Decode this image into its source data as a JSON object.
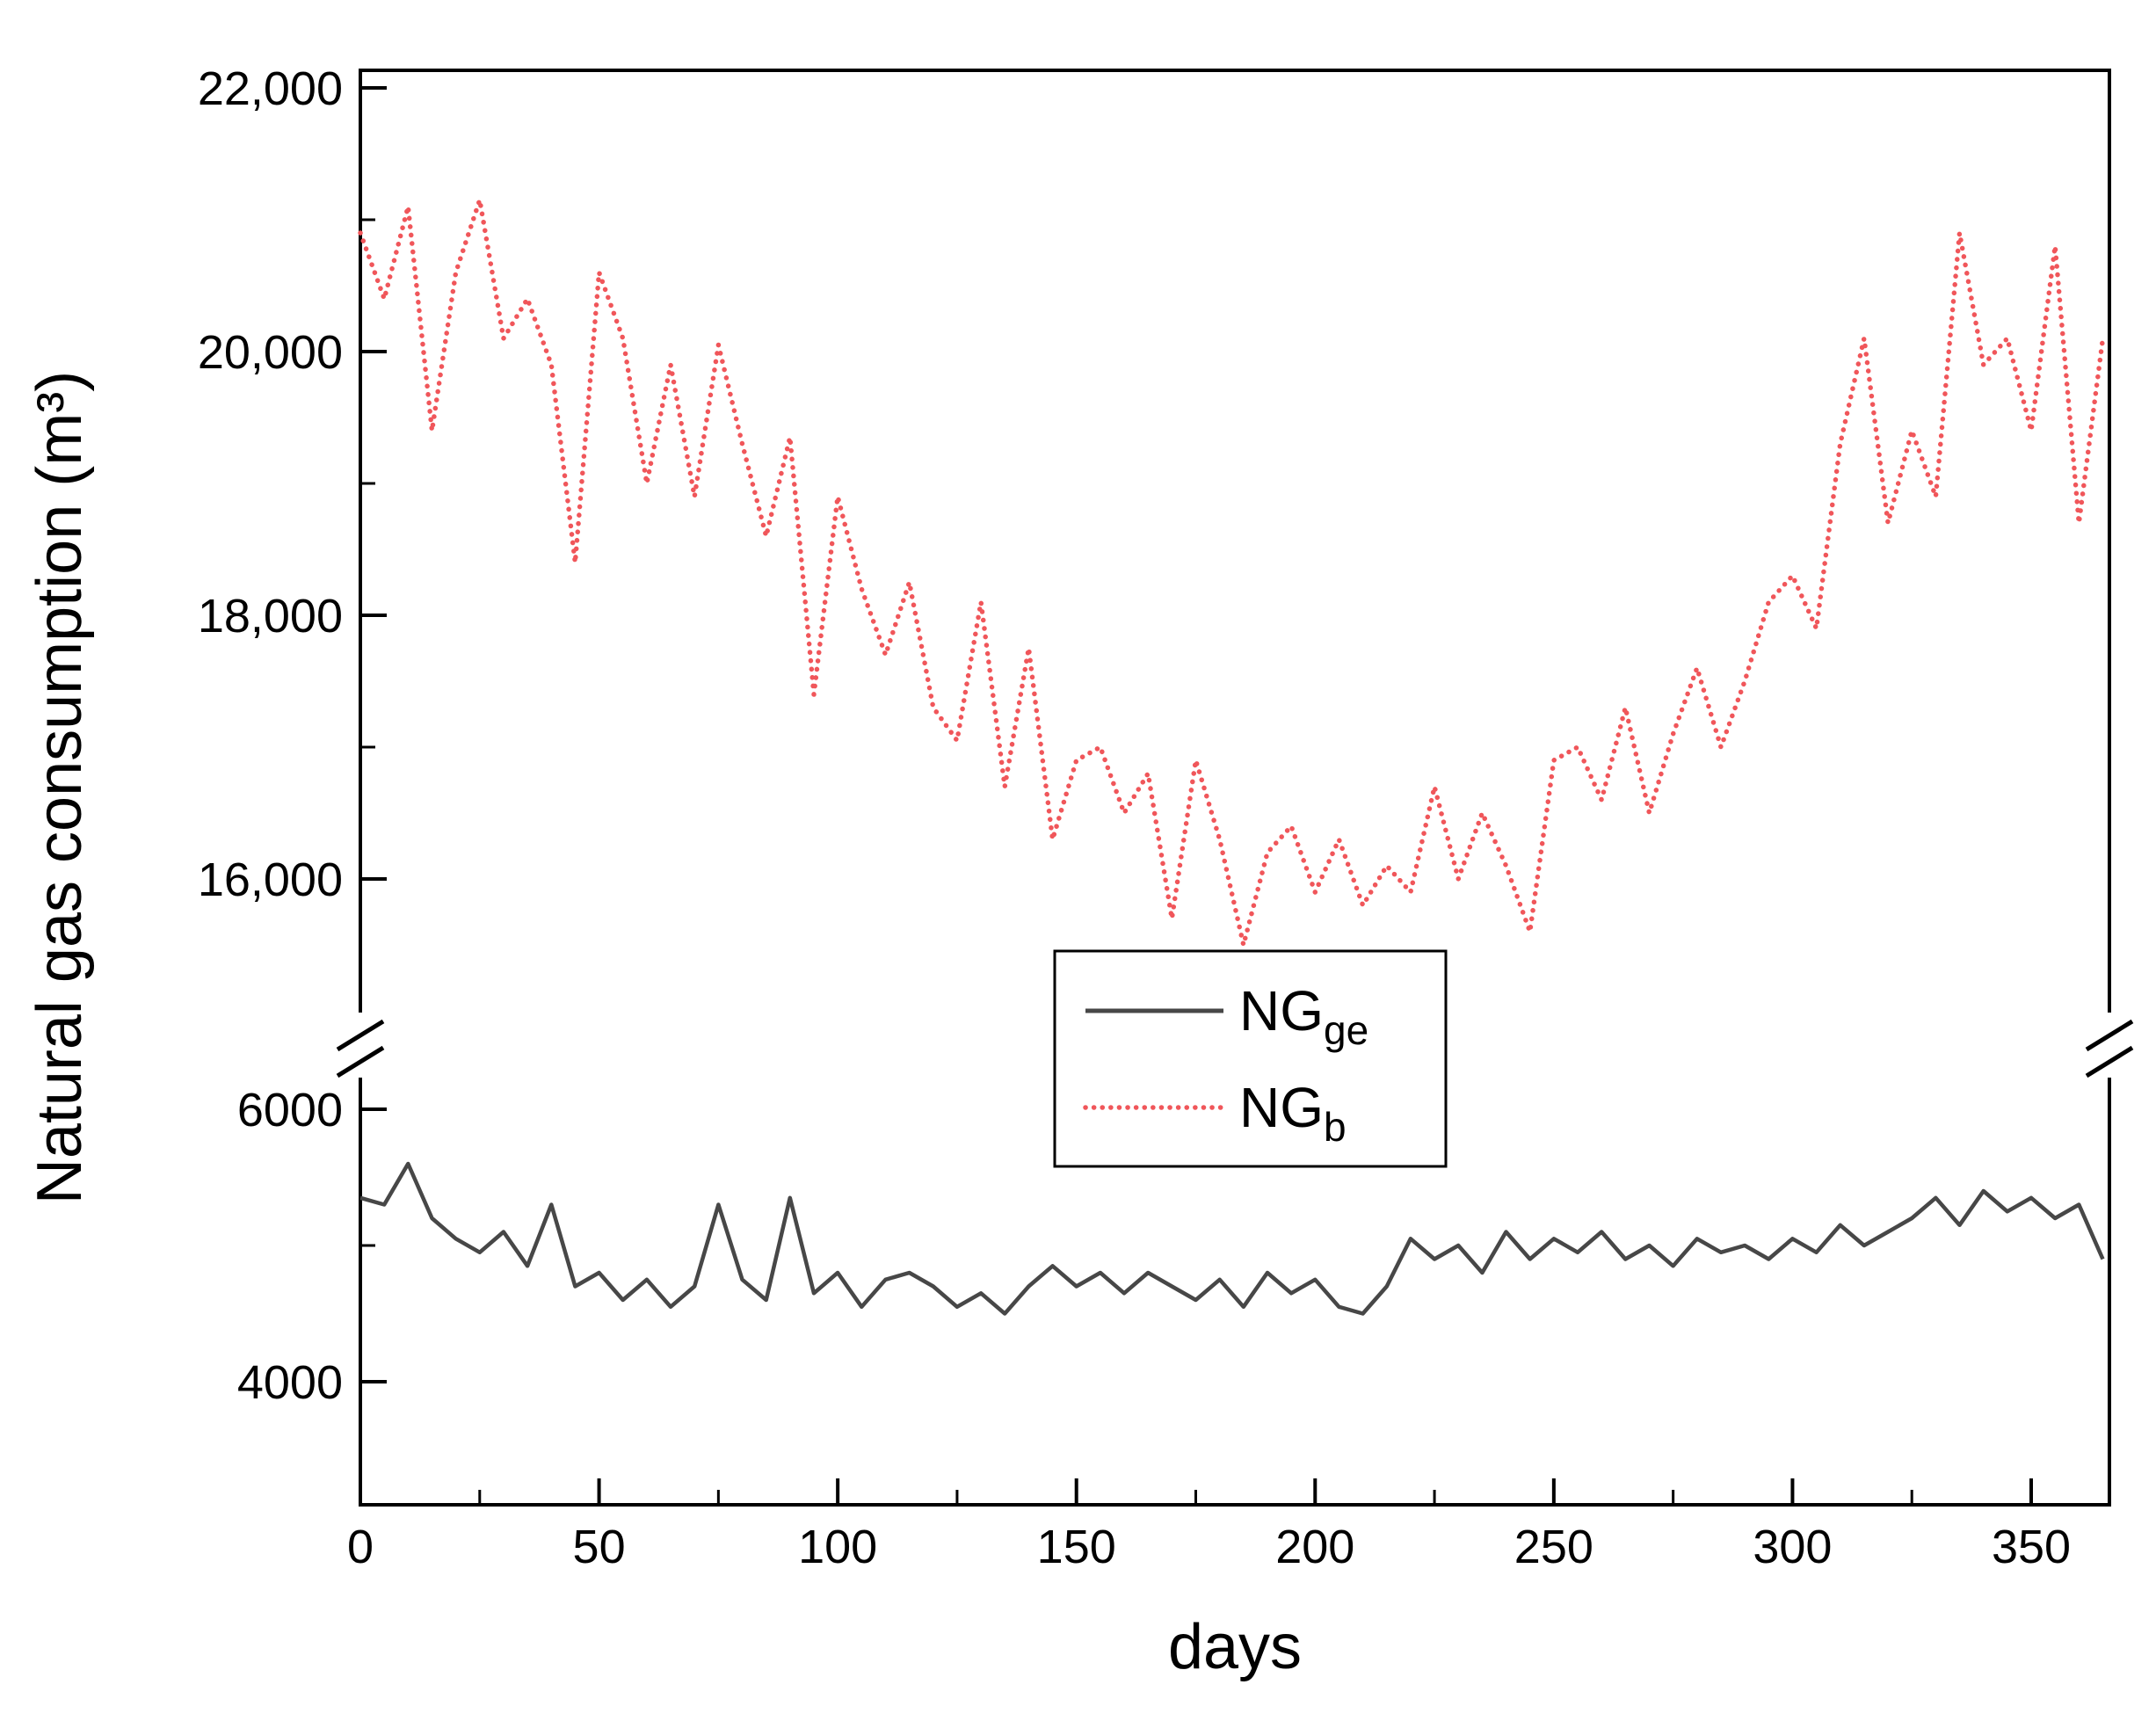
{
  "chart_data": {
    "type": "line",
    "title": "",
    "xlabel": "days",
    "ylabel": "Natural gas consumption (m³)",
    "x": [
      0,
      5,
      10,
      15,
      20,
      25,
      30,
      35,
      40,
      45,
      50,
      55,
      60,
      65,
      70,
      75,
      80,
      85,
      90,
      95,
      100,
      105,
      110,
      115,
      120,
      125,
      130,
      135,
      140,
      145,
      150,
      155,
      160,
      165,
      170,
      175,
      180,
      185,
      190,
      195,
      200,
      205,
      210,
      215,
      220,
      225,
      230,
      235,
      240,
      245,
      250,
      255,
      260,
      265,
      270,
      275,
      280,
      285,
      290,
      295,
      300,
      305,
      310,
      315,
      320,
      325,
      330,
      335,
      340,
      345,
      350,
      355,
      360,
      365
    ],
    "series": [
      {
        "name": "NG",
        "sub": "ge",
        "label": "NG_ge",
        "style": "solid",
        "color": "#474747",
        "values": [
          5350,
          5300,
          5600,
          5200,
          5050,
          4950,
          5100,
          4850,
          5300,
          4700,
          4800,
          4600,
          4750,
          4550,
          4700,
          5300,
          4750,
          4600,
          5350,
          4650,
          4800,
          4550,
          4750,
          4800,
          4700,
          4550,
          4650,
          4500,
          4700,
          4850,
          4700,
          4800,
          4650,
          4800,
          4700,
          4600,
          4750,
          4550,
          4800,
          4650,
          4750,
          4550,
          4500,
          4700,
          5050,
          4900,
          5000,
          4800,
          5100,
          4900,
          5050,
          4950,
          5100,
          4900,
          5000,
          4850,
          5050,
          4950,
          5000,
          4900,
          5050,
          4950,
          5150,
          5000,
          5100,
          5200,
          5350,
          5150,
          5400,
          5250,
          5350,
          5200,
          5300,
          4900
        ]
      },
      {
        "name": "NG",
        "sub": "b",
        "label": "NG_b",
        "style": "dotted",
        "color": "#f0565a",
        "values": [
          20900,
          20400,
          21100,
          19400,
          20600,
          21150,
          20100,
          20400,
          19900,
          18400,
          20600,
          20100,
          19000,
          19900,
          18900,
          20050,
          19300,
          18600,
          19350,
          17400,
          18900,
          18200,
          17700,
          18250,
          17300,
          17050,
          18100,
          16700,
          17750,
          16300,
          16900,
          17000,
          16500,
          16800,
          15700,
          16900,
          16300,
          15500,
          16200,
          16400,
          15900,
          16300,
          15800,
          16100,
          15900,
          16700,
          16000,
          16500,
          16100,
          15600,
          16900,
          17000,
          16600,
          17300,
          16500,
          17100,
          17600,
          17000,
          17500,
          18100,
          18300,
          17900,
          19300,
          20100,
          18700,
          19400,
          18900,
          20900,
          19900,
          20100,
          19400,
          20800,
          18700,
          20100
        ]
      }
    ],
    "x_axis": {
      "range": [
        0,
        366
      ],
      "ticks": [
        0,
        50,
        100,
        150,
        200,
        250,
        300,
        350
      ],
      "tick_labels": [
        "0",
        "50",
        "100",
        "150",
        "200",
        "250",
        "300",
        "350"
      ],
      "minor_ticks": [
        25,
        75,
        125,
        175,
        225,
        275,
        325
      ]
    },
    "y_axis": {
      "broken": true,
      "upper": {
        "range": [
          15000,
          22200
        ],
        "ticks": [
          22000,
          20000,
          18000,
          16000
        ],
        "tick_labels": [
          "22,000",
          "20,000",
          "18,000",
          "16,000"
        ],
        "minor_ticks": [
          21000,
          19000,
          17000
        ]
      },
      "lower": {
        "range": [
          3100,
          6200
        ],
        "ticks": [
          6000,
          4000
        ],
        "tick_labels": [
          "6000",
          "4000"
        ],
        "minor_ticks": [
          5000
        ]
      }
    },
    "legend": {
      "position": "center",
      "entries": [
        {
          "main": "NG",
          "sub": "ge",
          "style": "solid"
        },
        {
          "main": "NG",
          "sub": "b",
          "style": "dotted"
        }
      ]
    },
    "colors": {
      "axis": "#000000",
      "background": "#ffffff"
    }
  }
}
